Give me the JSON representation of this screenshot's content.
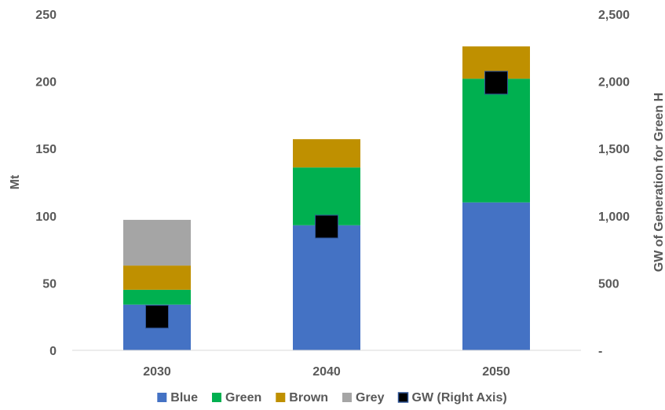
{
  "chart_data": {
    "type": "bar",
    "stacked": true,
    "categories": [
      "2030",
      "2040",
      "2050"
    ],
    "series": [
      {
        "name": "Blue",
        "color": "#4472C4",
        "values": [
          34,
          93,
          110
        ]
      },
      {
        "name": "Green",
        "color": "#00B050",
        "values": [
          11,
          43,
          92
        ]
      },
      {
        "name": "Brown",
        "color": "#BF9000",
        "values": [
          18,
          21,
          24
        ]
      },
      {
        "name": "Grey",
        "color": "#A5A5A5",
        "values": [
          34,
          0,
          0
        ]
      }
    ],
    "secondary_series": {
      "name": "GW (Right Axis)",
      "type": "marker",
      "marker": "square",
      "color": "#000000",
      "values": [
        250,
        920,
        1990
      ]
    },
    "ylabel": "Mt",
    "y2label": "GW of Generation for Green H",
    "ylim": [
      0,
      250
    ],
    "y2lim": [
      0,
      2500
    ],
    "yticks": [
      "0",
      "50",
      "100",
      "150",
      "200",
      "250"
    ],
    "y2ticks": [
      "-",
      "500",
      "1,000",
      "1,500",
      "2,000",
      "2,500"
    ],
    "grid": false,
    "legend_position": "bottom"
  }
}
